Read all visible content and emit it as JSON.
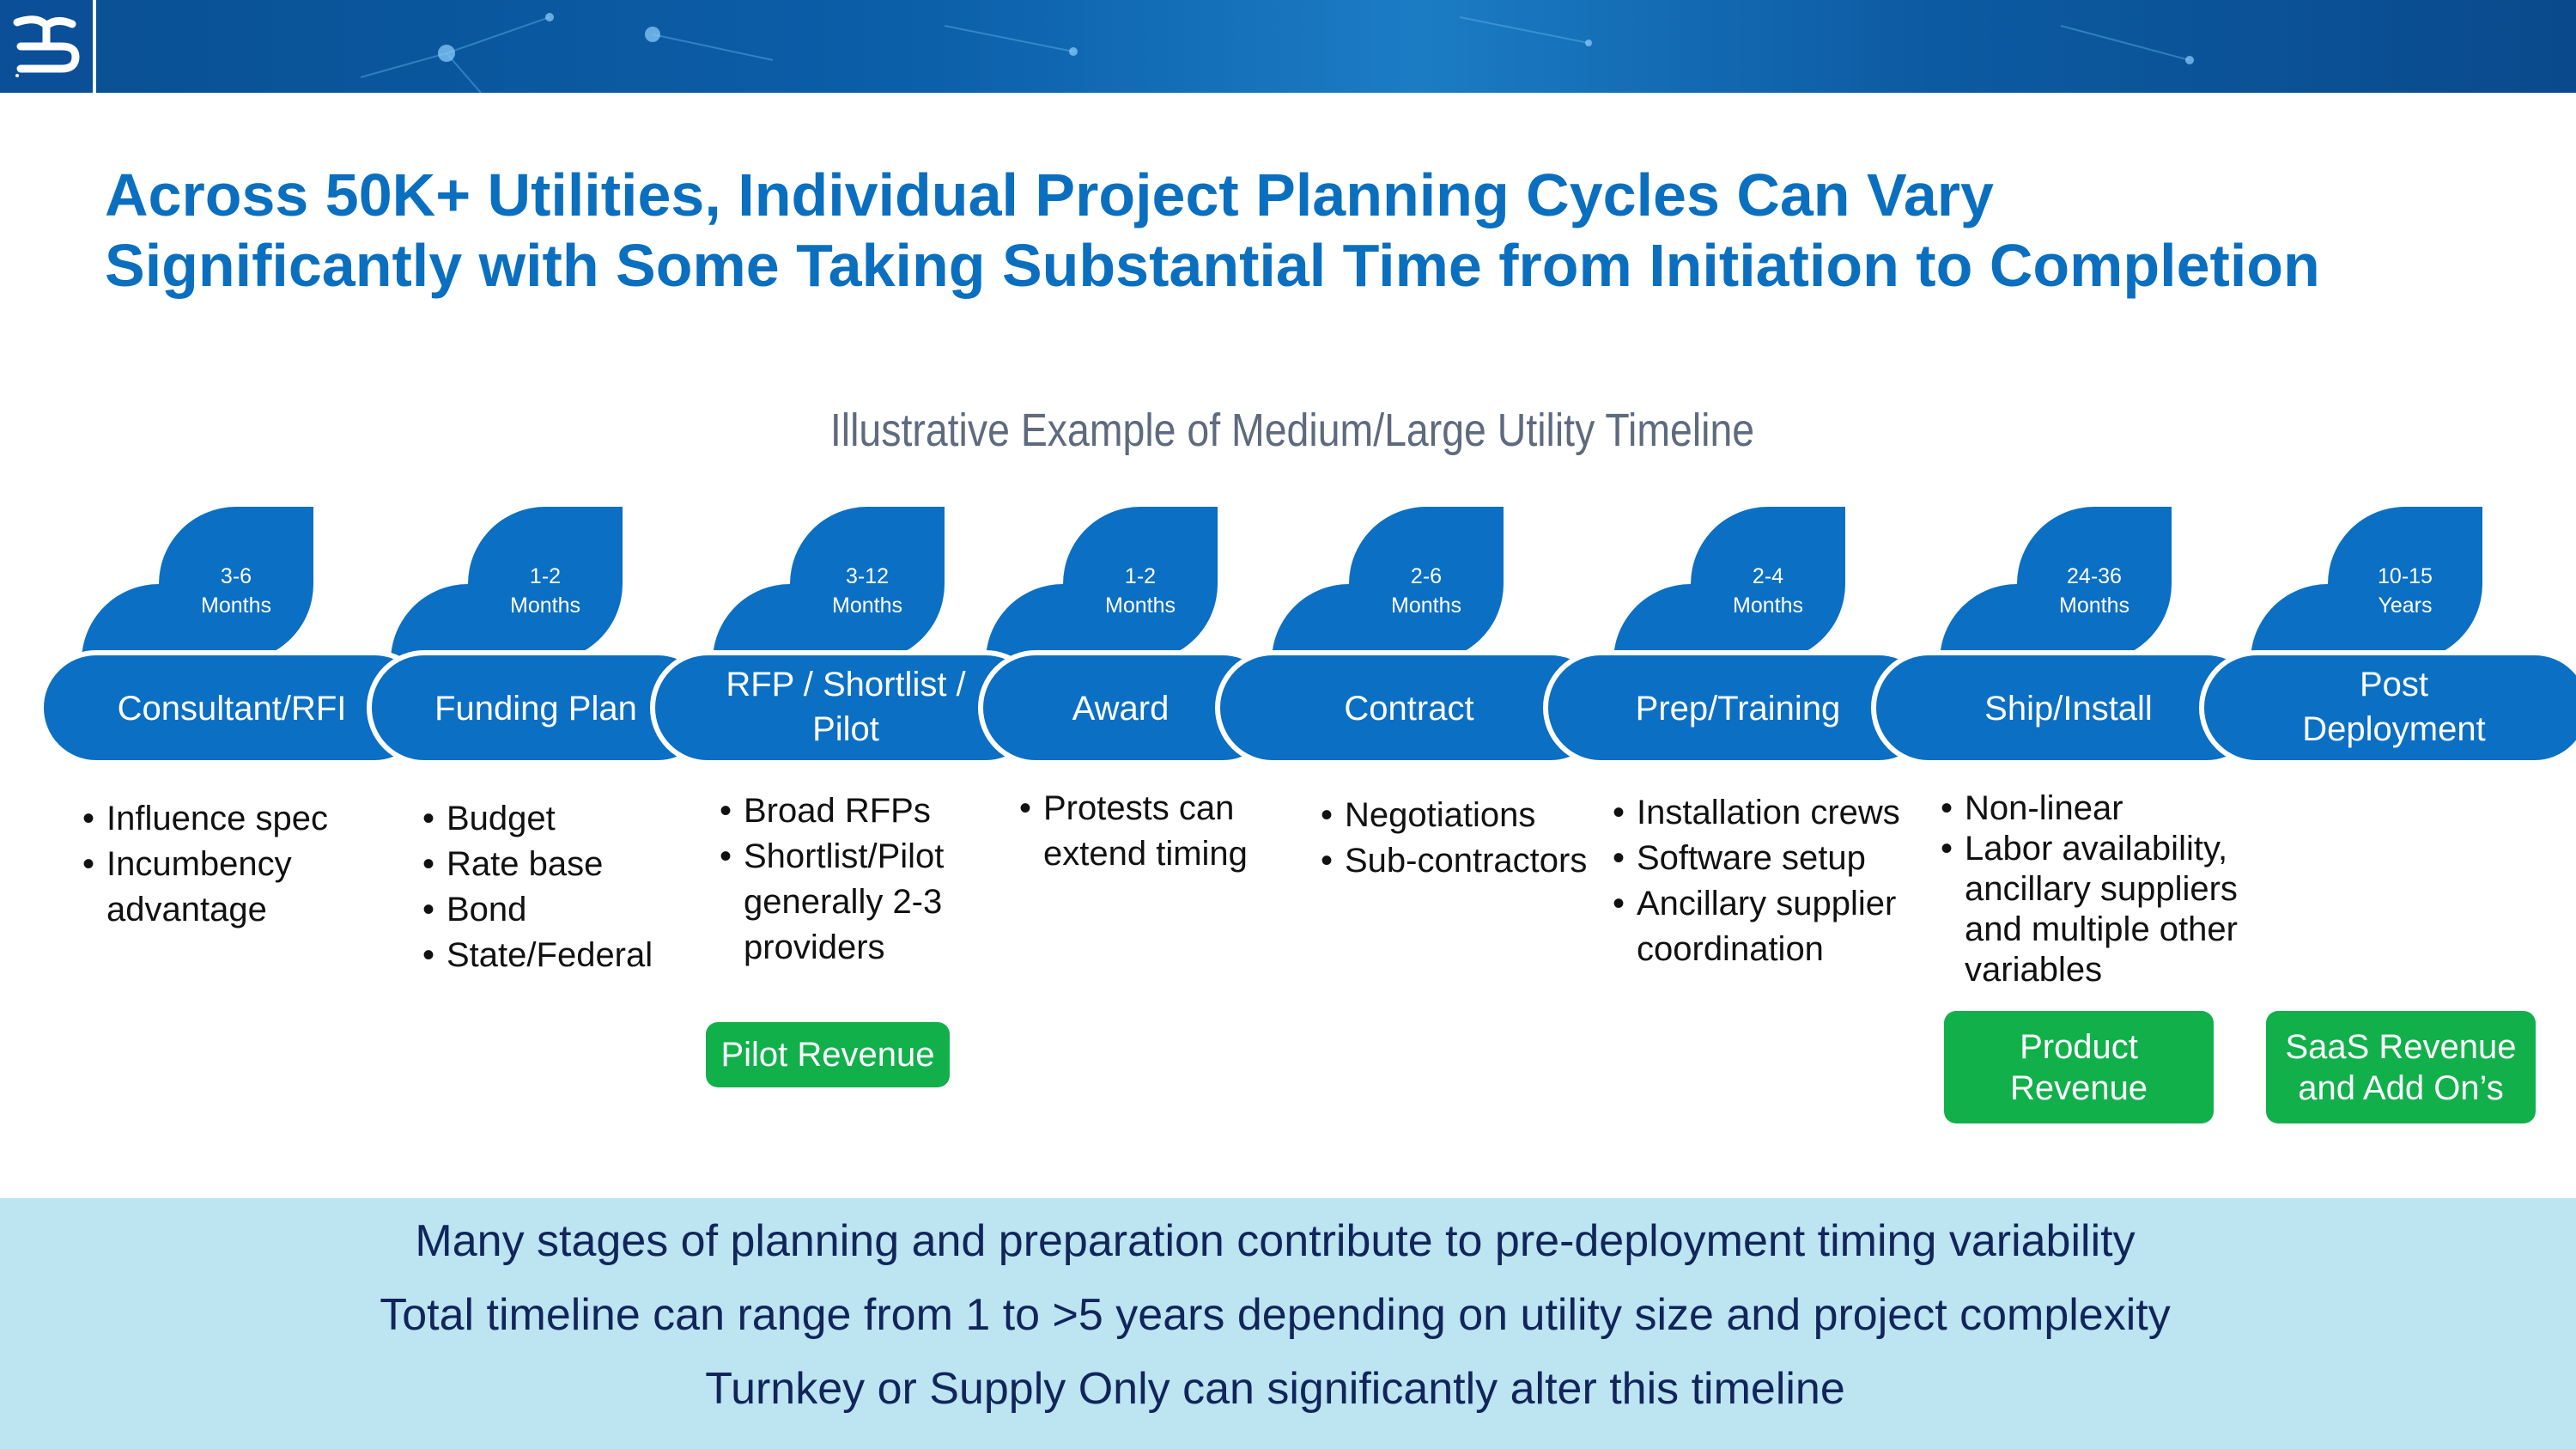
{
  "header": {
    "logo_icon": "company-logo-icon",
    "banner_style": "blue-network-graphic"
  },
  "title": {
    "line1": "Across 50K+ Utilities, Individual Project Planning Cycles Can Vary",
    "line2": "Significantly with Some Taking Substantial Time from Initiation to Completion"
  },
  "subtitle": "Illustrative Example of Medium/Large Utility Timeline",
  "stages": [
    {
      "duration": [
        "3-6",
        "Months"
      ],
      "label": [
        "Consultant/RFI"
      ],
      "bullets": [
        [
          "Influence spec"
        ],
        [
          "Incumbency",
          "advantage"
        ]
      ]
    },
    {
      "duration": [
        "1-2",
        "Months"
      ],
      "label": [
        "Funding Plan"
      ],
      "bullets": [
        [
          "Budget"
        ],
        [
          "Rate base"
        ],
        [
          "Bond"
        ],
        [
          "State/Federal"
        ]
      ]
    },
    {
      "duration": [
        "3-12",
        "Months"
      ],
      "label": [
        "RFP / Shortlist /",
        "Pilot"
      ],
      "bullets": [
        [
          "Broad RFPs"
        ],
        [
          "Shortlist/Pilot",
          "generally 2-3",
          "providers"
        ]
      ]
    },
    {
      "duration": [
        "1-2",
        "Months"
      ],
      "label": [
        "Award"
      ],
      "bullets": [
        [
          "Protests can",
          "extend timing"
        ]
      ]
    },
    {
      "duration": [
        "2-6",
        "Months"
      ],
      "label": [
        "Contract"
      ],
      "bullets": [
        [
          "Negotiations"
        ],
        [
          "Sub-contractors"
        ]
      ]
    },
    {
      "duration": [
        "2-4",
        "Months"
      ],
      "label": [
        "Prep/Training"
      ],
      "bullets": [
        [
          "Installation crews"
        ],
        [
          "Software setup"
        ],
        [
          "Ancillary supplier",
          "coordination"
        ]
      ]
    },
    {
      "duration": [
        "24-36",
        "Months"
      ],
      "label": [
        "Ship/Install"
      ],
      "bullets": [
        [
          "Non-linear"
        ],
        [
          "Labor availability,",
          "ancillary suppliers",
          "and multiple other",
          "variables"
        ]
      ]
    },
    {
      "duration": [
        "10-15",
        "Years"
      ],
      "label": [
        "Post",
        "Deployment"
      ],
      "bullets": []
    }
  ],
  "revenue_boxes": {
    "pilot": "Pilot Revenue",
    "product": [
      "Product",
      "Revenue"
    ],
    "saas": [
      "SaaS Revenue",
      "and Add On’s"
    ]
  },
  "summary": [
    "Many stages of planning and preparation contribute to pre-deployment timing variability",
    "Total timeline can range from 1 to >5 years depending on utility size and project complexity",
    "Turnkey or Supply Only can significantly alter this timeline"
  ],
  "colors": {
    "title": "#0b6fbf",
    "stage_blue": "#0b6fc4",
    "revenue_green": "#11b04b",
    "summary_band": "#bce4f1",
    "summary_text": "#11255a"
  }
}
